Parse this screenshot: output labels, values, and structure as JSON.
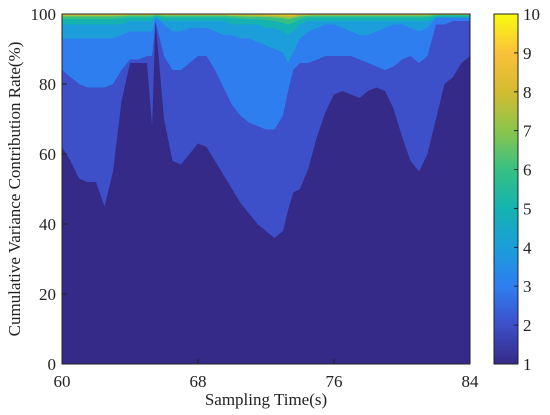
{
  "chart_data": {
    "type": "area",
    "xlabel": "Sampling Time(s)",
    "ylabel": "Cumulative Variance  Contribution Rate(%)",
    "xlim": [
      60,
      84
    ],
    "ylim": [
      0,
      100
    ],
    "xticks": [
      60,
      68,
      76,
      84
    ],
    "yticks": [
      0,
      20,
      40,
      60,
      80,
      100
    ],
    "grid": false,
    "colorbar": {
      "min": 1,
      "max": 10,
      "ticks": [
        1,
        2,
        3,
        4,
        5,
        6,
        7,
        8,
        9,
        10
      ],
      "colormap": "parula"
    },
    "x": [
      60,
      60.5,
      61,
      61.5,
      62,
      62.5,
      63,
      63.5,
      64,
      64.5,
      65,
      65.3,
      65.5,
      66,
      66.5,
      67,
      67.5,
      68,
      68.5,
      69,
      69.5,
      70,
      70.5,
      71,
      71.5,
      72,
      72.5,
      73,
      73.3,
      73.6,
      74,
      74.5,
      75,
      75.5,
      76,
      76.5,
      77,
      77.5,
      78,
      78.5,
      79,
      79.5,
      80,
      80.5,
      81,
      81.5,
      82,
      82.5,
      83,
      83.5,
      84
    ],
    "series": [
      {
        "values": [
          62,
          58,
          53,
          52,
          52,
          45,
          55,
          75,
          86,
          86,
          86,
          68,
          98,
          70,
          58,
          57,
          60,
          63,
          62,
          58,
          54,
          50,
          46,
          43,
          40,
          38,
          36,
          38,
          44,
          49,
          50,
          56,
          65,
          72,
          77,
          78,
          77,
          76,
          78,
          79,
          78,
          73,
          65,
          58,
          55,
          60,
          70,
          80,
          82,
          86,
          88
        ]
      },
      {
        "values": [
          84,
          82,
          80,
          79,
          79,
          79,
          80,
          84,
          87,
          87,
          88,
          88,
          98,
          88,
          84,
          84,
          86,
          88,
          88,
          84,
          79,
          74,
          71,
          69,
          68,
          67,
          67,
          71,
          78,
          84,
          86,
          86,
          87,
          88,
          88,
          88,
          88,
          87,
          86,
          85,
          84,
          85,
          87,
          88,
          86,
          88,
          97,
          97,
          98,
          98,
          98
        ]
      },
      {
        "values": [
          93,
          93,
          93,
          93,
          93,
          93,
          93,
          94,
          95,
          95,
          95,
          95,
          99,
          97,
          95,
          95,
          96,
          96,
          96,
          95,
          94,
          94,
          93,
          93,
          92,
          91,
          90,
          89,
          86,
          89,
          93,
          95,
          96,
          97,
          97,
          96,
          95,
          94,
          94,
          95,
          96,
          97,
          97,
          96,
          95,
          96,
          99,
          99,
          99,
          99,
          99
        ]
      },
      {
        "values": [
          97,
          97,
          97,
          97,
          97,
          97,
          97,
          97,
          98,
          98,
          98,
          98,
          99,
          98,
          98,
          98,
          98,
          98,
          98,
          98,
          98,
          97,
          97,
          97,
          97,
          96,
          96,
          95,
          94,
          95,
          97,
          98,
          98,
          98,
          98,
          98,
          98,
          98,
          98,
          98,
          98,
          98,
          98,
          98,
          98,
          98,
          99,
          99,
          99,
          99,
          99
        ]
      },
      {
        "values": [
          98.5,
          98.5,
          98.5,
          98.5,
          98.5,
          98.5,
          98.5,
          98.8,
          99,
          99,
          99,
          99,
          99.5,
          99,
          99,
          99,
          99,
          99,
          99,
          99,
          99,
          98.8,
          98.7,
          98.5,
          98.5,
          98.3,
          98,
          97.5,
          97,
          97.5,
          98.5,
          99,
          99,
          99,
          99,
          99,
          99,
          99,
          99,
          99,
          99,
          99,
          99,
          99,
          99,
          99,
          99.5,
          99.5,
          99.5,
          99.5,
          99.5
        ]
      },
      {
        "values": [
          99.3,
          99.3,
          99.3,
          99.3,
          99.3,
          99.3,
          99.3,
          99.4,
          99.5,
          99.5,
          99.5,
          99.5,
          99.7,
          99.5,
          99.5,
          99.5,
          99.5,
          99.5,
          99.5,
          99.5,
          99.5,
          99.4,
          99.3,
          99.2,
          99.2,
          99.1,
          99,
          98.8,
          98.5,
          98.8,
          99.3,
          99.5,
          99.5,
          99.5,
          99.5,
          99.5,
          99.5,
          99.5,
          99.5,
          99.5,
          99.5,
          99.5,
          99.5,
          99.5,
          99.5,
          99.5,
          99.7,
          99.7,
          99.7,
          99.7,
          99.7
        ]
      },
      {
        "values": [
          99.6,
          99.6,
          99.6,
          99.6,
          99.6,
          99.6,
          99.6,
          99.6,
          99.7,
          99.7,
          99.7,
          99.7,
          99.8,
          99.7,
          99.7,
          99.7,
          99.7,
          99.7,
          99.7,
          99.7,
          99.7,
          99.6,
          99.6,
          99.6,
          99.5,
          99.5,
          99.4,
          99.3,
          99.2,
          99.3,
          99.6,
          99.7,
          99.7,
          99.7,
          99.7,
          99.7,
          99.7,
          99.7,
          99.7,
          99.7,
          99.7,
          99.7,
          99.7,
          99.7,
          99.7,
          99.7,
          99.8,
          99.8,
          99.8,
          99.8,
          99.8
        ]
      },
      {
        "values": [
          99.8,
          99.8,
          99.8,
          99.8,
          99.8,
          99.8,
          99.8,
          99.8,
          99.8,
          99.8,
          99.8,
          99.8,
          99.9,
          99.8,
          99.8,
          99.8,
          99.8,
          99.8,
          99.8,
          99.8,
          99.8,
          99.8,
          99.8,
          99.8,
          99.8,
          99.7,
          99.7,
          99.6,
          99.6,
          99.6,
          99.8,
          99.8,
          99.8,
          99.8,
          99.8,
          99.8,
          99.8,
          99.8,
          99.8,
          99.8,
          99.8,
          99.8,
          99.8,
          99.8,
          99.8,
          99.8,
          99.9,
          99.9,
          99.9,
          99.9,
          99.9
        ]
      },
      {
        "values": [
          99.9,
          99.9,
          99.9,
          99.9,
          99.9,
          99.9,
          99.9,
          99.9,
          99.9,
          99.9,
          99.9,
          99.9,
          99.95,
          99.9,
          99.9,
          99.9,
          99.9,
          99.9,
          99.9,
          99.9,
          99.9,
          99.9,
          99.9,
          99.9,
          99.9,
          99.9,
          99.85,
          99.8,
          99.8,
          99.8,
          99.9,
          99.9,
          99.9,
          99.9,
          99.9,
          99.9,
          99.9,
          99.9,
          99.9,
          99.9,
          99.9,
          99.9,
          99.9,
          99.9,
          99.9,
          99.9,
          99.95,
          99.95,
          99.95,
          99.95,
          99.95
        ]
      },
      {
        "values": [
          100,
          100,
          100,
          100,
          100,
          100,
          100,
          100,
          100,
          100,
          100,
          100,
          100,
          100,
          100,
          100,
          100,
          100,
          100,
          100,
          100,
          100,
          100,
          100,
          100,
          100,
          100,
          100,
          100,
          100,
          100,
          100,
          100,
          100,
          100,
          100,
          100,
          100,
          100,
          100,
          100,
          100,
          100,
          100,
          100,
          100,
          100,
          100,
          100,
          100,
          100
        ]
      }
    ],
    "colors": [
      "#352a87",
      "#3d4fc9",
      "#2f7ef0",
      "#1b9ed9",
      "#14b3b1",
      "#37c084",
      "#8bc54d",
      "#d4bb30",
      "#fbc13a",
      "#f9fb0e"
    ]
  }
}
